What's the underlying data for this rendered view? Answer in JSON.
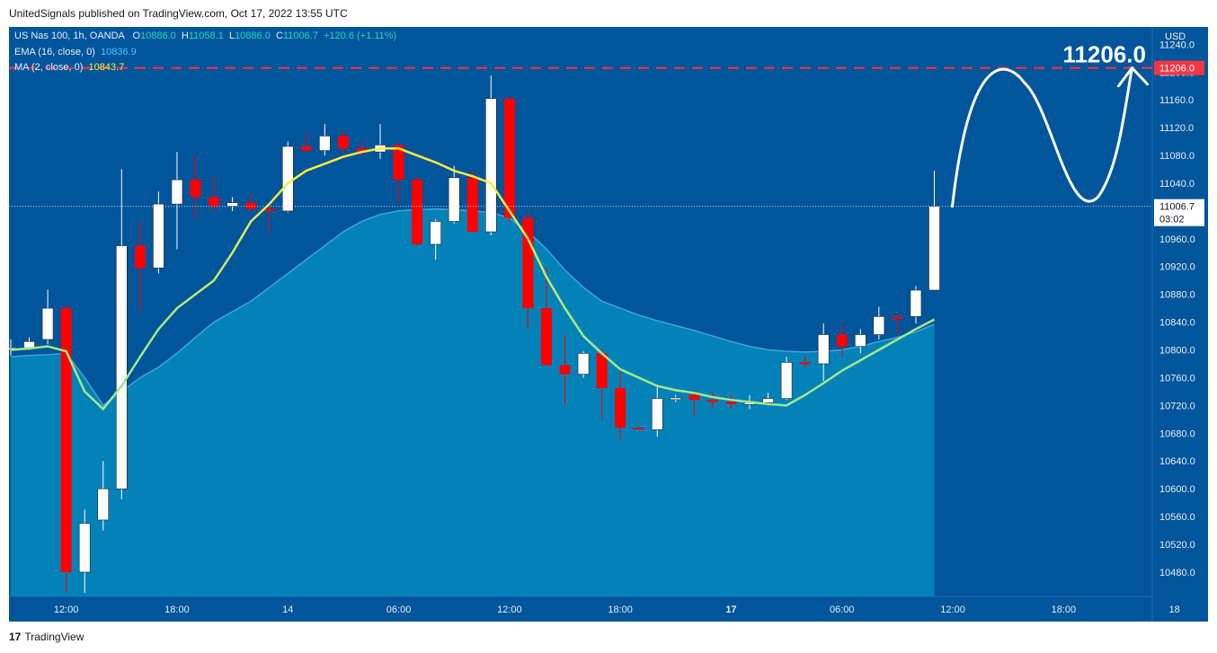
{
  "header": {
    "publisher_text": "UnitedSignals published on TradingView.com, Oct 17, 2022 13:55 UTC"
  },
  "footer": {
    "brand": "TradingView",
    "logo_glyph": "17"
  },
  "legend": {
    "symbol": "US Nas 100, 1h, OANDA",
    "o_label": "O",
    "o_value": "10886.0",
    "h_label": "H",
    "h_value": "11058.1",
    "l_label": "L",
    "l_value": "10886.0",
    "c_label": "C",
    "c_value": "11006.7",
    "change": "+120.6 (+1.11%)",
    "ema_label": "EMA (16, close, 0)",
    "ema_value": "10836.9",
    "ma_label": "MA (2, close, 0)",
    "ma_value": "10843.7"
  },
  "colors": {
    "background": "#01559b",
    "area_fill": "#0382b8",
    "bull": "#ffffff",
    "bear": "#ff0000",
    "ma_line_top": "#ffeb3b",
    "ma_line_bottom": "#a5e887",
    "target_line": "#f23645",
    "axis_text": "#e8eef7"
  },
  "chart_data": {
    "type": "candlestick",
    "currency_label": "USD",
    "y_ticks": [
      "10480.0",
      "10520.0",
      "10560.0",
      "10600.0",
      "10640.0",
      "10680.0",
      "10720.0",
      "10760.0",
      "10800.0",
      "10840.0",
      "10880.0",
      "10920.0",
      "10960.0",
      "11000.0",
      "11040.0",
      "11080.0",
      "11120.0",
      "11160.0",
      "11200.0",
      "11240.0"
    ],
    "x_ticks": [
      {
        "label": "12:00",
        "bar": 3
      },
      {
        "label": "18:00",
        "bar": 9
      },
      {
        "label": "14",
        "bar": 15
      },
      {
        "label": "06:00",
        "bar": 21
      },
      {
        "label": "12:00",
        "bar": 27
      },
      {
        "label": "18:00",
        "bar": 33
      },
      {
        "label": "17",
        "bar": 39
      },
      {
        "label": "06:00",
        "bar": 45
      },
      {
        "label": "12:00",
        "bar": 51
      },
      {
        "label": "18:00",
        "bar": 57
      },
      {
        "label": "18",
        "bar": 63
      }
    ],
    "ylim": [
      10445,
      11265
    ],
    "candles": [
      {
        "o": 10800,
        "h": 10815,
        "l": 10792,
        "c": 10803
      },
      {
        "o": 10803,
        "h": 10818,
        "l": 10800,
        "c": 10812
      },
      {
        "o": 10815,
        "h": 10887,
        "l": 10808,
        "c": 10860
      },
      {
        "o": 10860,
        "h": 10866,
        "l": 10450,
        "c": 10480
      },
      {
        "o": 10480,
        "h": 10570,
        "l": 10450,
        "c": 10550
      },
      {
        "o": 10555,
        "h": 10640,
        "l": 10540,
        "c": 10600
      },
      {
        "o": 10600,
        "h": 11060,
        "l": 10585,
        "c": 10950
      },
      {
        "o": 10950,
        "h": 10985,
        "l": 10855,
        "c": 10918
      },
      {
        "o": 10918,
        "h": 11028,
        "l": 10910,
        "c": 11010
      },
      {
        "o": 11010,
        "h": 11085,
        "l": 10945,
        "c": 11045
      },
      {
        "o": 11045,
        "h": 11080,
        "l": 10990,
        "c": 11020
      },
      {
        "o": 11020,
        "h": 11050,
        "l": 11000,
        "c": 11007
      },
      {
        "o": 11007,
        "h": 11020,
        "l": 11000,
        "c": 11012
      },
      {
        "o": 11012,
        "h": 11025,
        "l": 11000,
        "c": 11003
      },
      {
        "o": 11003,
        "h": 11012,
        "l": 10968,
        "c": 11000
      },
      {
        "o": 11000,
        "h": 11100,
        "l": 10998,
        "c": 11093
      },
      {
        "o": 11093,
        "h": 11112,
        "l": 11085,
        "c": 11087
      },
      {
        "o": 11087,
        "h": 11125,
        "l": 11080,
        "c": 11108
      },
      {
        "o": 11108,
        "h": 11118,
        "l": 11082,
        "c": 11090
      },
      {
        "o": 11090,
        "h": 11100,
        "l": 11080,
        "c": 11086
      },
      {
        "o": 11085,
        "h": 11125,
        "l": 11075,
        "c": 11095
      },
      {
        "o": 11095,
        "h": 11098,
        "l": 11010,
        "c": 11045
      },
      {
        "o": 11045,
        "h": 11050,
        "l": 10950,
        "c": 10952
      },
      {
        "o": 10952,
        "h": 10988,
        "l": 10930,
        "c": 10985
      },
      {
        "o": 10985,
        "h": 11065,
        "l": 10982,
        "c": 11048
      },
      {
        "o": 11048,
        "h": 11060,
        "l": 10970,
        "c": 10970
      },
      {
        "o": 10970,
        "h": 11195,
        "l": 10965,
        "c": 11162
      },
      {
        "o": 11162,
        "h": 11165,
        "l": 10985,
        "c": 10990
      },
      {
        "o": 10990,
        "h": 11000,
        "l": 10830,
        "c": 10860
      },
      {
        "o": 10860,
        "h": 10918,
        "l": 10780,
        "c": 10778
      },
      {
        "o": 10778,
        "h": 10822,
        "l": 10720,
        "c": 10765
      },
      {
        "o": 10765,
        "h": 10798,
        "l": 10760,
        "c": 10795
      },
      {
        "o": 10795,
        "h": 10800,
        "l": 10700,
        "c": 10745
      },
      {
        "o": 10745,
        "h": 10770,
        "l": 10670,
        "c": 10688
      },
      {
        "o": 10688,
        "h": 10690,
        "l": 10686,
        "c": 10687
      },
      {
        "o": 10685,
        "h": 10750,
        "l": 10675,
        "c": 10730
      },
      {
        "o": 10730,
        "h": 10735,
        "l": 10725,
        "c": 10731
      },
      {
        "o": 10735,
        "h": 10742,
        "l": 10705,
        "c": 10728
      },
      {
        "o": 10728,
        "h": 10740,
        "l": 10715,
        "c": 10725
      },
      {
        "o": 10725,
        "h": 10735,
        "l": 10715,
        "c": 10722
      },
      {
        "o": 10722,
        "h": 10735,
        "l": 10715,
        "c": 10724
      },
      {
        "o": 10724,
        "h": 10738,
        "l": 10720,
        "c": 10730
      },
      {
        "o": 10730,
        "h": 10790,
        "l": 10728,
        "c": 10782
      },
      {
        "o": 10782,
        "h": 10792,
        "l": 10775,
        "c": 10780
      },
      {
        "o": 10780,
        "h": 10838,
        "l": 10755,
        "c": 10822
      },
      {
        "o": 10822,
        "h": 10838,
        "l": 10790,
        "c": 10805
      },
      {
        "o": 10805,
        "h": 10830,
        "l": 10795,
        "c": 10822
      },
      {
        "o": 10822,
        "h": 10862,
        "l": 10815,
        "c": 10848
      },
      {
        "o": 10848,
        "h": 10850,
        "l": 10825,
        "c": 10845
      },
      {
        "o": 10848,
        "h": 10892,
        "l": 10838,
        "c": 10886
      },
      {
        "o": 10886,
        "h": 11058,
        "l": 10886,
        "c": 11006.7
      }
    ],
    "ema_line": [
      10790,
      10792,
      10793,
      10795,
      10760,
      10720,
      10740,
      10760,
      10775,
      10795,
      10818,
      10840,
      10855,
      10870,
      10890,
      10910,
      10930,
      10950,
      10970,
      10985,
      10995,
      11000,
      11002,
      11003,
      11002,
      11000,
      10998,
      10990,
      10970,
      10945,
      10915,
      10890,
      10870,
      10860,
      10850,
      10842,
      10835,
      10828,
      10820,
      10812,
      10805,
      10800,
      10798,
      10797,
      10798,
      10800,
      10805,
      10812,
      10818,
      10826,
      10836.9
    ],
    "ma_line": [
      10800,
      10802,
      10805,
      10798,
      10740,
      10715,
      10748,
      10790,
      10830,
      10860,
      10880,
      10900,
      10940,
      10985,
      11010,
      11040,
      11058,
      11068,
      11078,
      11085,
      11090,
      11090,
      11080,
      11070,
      11058,
      11050,
      11040,
      11000,
      10960,
      10905,
      10860,
      10820,
      10795,
      10772,
      10760,
      10748,
      10742,
      10738,
      10732,
      10728,
      10725,
      10722,
      10720,
      10735,
      10752,
      10770,
      10785,
      10800,
      10815,
      10830,
      10843.7
    ],
    "target": {
      "price": 11206.0,
      "label": "11206.0"
    },
    "last_price": {
      "label": "11006.7",
      "countdown": "03:02"
    }
  }
}
